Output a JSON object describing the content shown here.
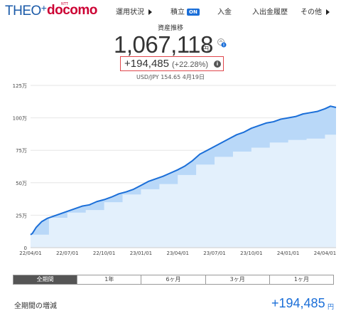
{
  "nav": {
    "brand": "THEO",
    "brand_plus": "+",
    "partner": "docomo",
    "partner_superscript": "NTT",
    "items": [
      {
        "label": "運用状況"
      },
      {
        "label": "積立",
        "badge": "ON"
      },
      {
        "label": "入金"
      },
      {
        "label": "入出金履歴"
      },
      {
        "label": "その他"
      }
    ]
  },
  "header": {
    "title": "資産推移",
    "total_value": "1,067,118",
    "total_unit": "円",
    "gain": "+194,485",
    "gain_pct": "(+22.28%)",
    "fx": "USD/JPY 154.65 4月19日"
  },
  "chart_data": {
    "type": "area",
    "yunit": "万円",
    "ylim": [
      0,
      125
    ],
    "yticks": [
      "0",
      "25万",
      "50万",
      "75万",
      "100万",
      "125万"
    ],
    "ytick_values": [
      0,
      25,
      50,
      75,
      100,
      125
    ],
    "xticks": [
      "22/04/01",
      "22/07/01",
      "22/10/01",
      "23/01/01",
      "23/04/01",
      "23/07/01",
      "23/10/01",
      "24/01/01",
      "24/04/01"
    ],
    "grid": true,
    "colors": {
      "value_line": "#1a6ed8",
      "value_fill": "#b9d8f8",
      "principal_fill": "#e3f0fc"
    },
    "series": [
      {
        "values": [
          [
            0,
            10
          ],
          [
            0.05,
            11
          ],
          [
            0.15,
            15.5
          ],
          [
            0.3,
            20
          ],
          [
            0.45,
            22.5
          ],
          [
            0.6,
            24
          ],
          [
            0.8,
            26
          ],
          [
            1.0,
            28
          ],
          [
            1.2,
            30
          ],
          [
            1.4,
            32
          ],
          [
            1.6,
            33
          ],
          [
            1.8,
            35.5
          ],
          [
            2.0,
            37
          ],
          [
            2.2,
            39
          ],
          [
            2.4,
            41.5
          ],
          [
            2.6,
            43
          ],
          [
            2.8,
            45
          ],
          [
            3.0,
            48
          ],
          [
            3.2,
            51
          ],
          [
            3.4,
            53
          ],
          [
            3.6,
            55
          ],
          [
            3.8,
            57.5
          ],
          [
            4.0,
            60
          ],
          [
            4.2,
            63
          ],
          [
            4.4,
            67
          ],
          [
            4.6,
            72
          ],
          [
            4.8,
            75
          ],
          [
            5.0,
            78
          ],
          [
            5.2,
            81
          ],
          [
            5.4,
            84
          ],
          [
            5.6,
            87
          ],
          [
            5.8,
            89
          ],
          [
            6.0,
            92
          ],
          [
            6.2,
            94
          ],
          [
            6.4,
            96
          ],
          [
            6.6,
            97
          ],
          [
            6.8,
            99
          ],
          [
            7.0,
            100
          ],
          [
            7.2,
            101
          ],
          [
            7.4,
            103
          ],
          [
            7.6,
            104
          ],
          [
            7.8,
            105
          ],
          [
            8.0,
            107
          ],
          [
            8.15,
            109
          ],
          [
            8.3,
            108
          ]
        ]
      },
      {
        "values": [
          [
            0,
            10
          ],
          [
            0.5,
            23
          ],
          [
            1.0,
            27
          ],
          [
            1.5,
            29
          ],
          [
            2.0,
            35
          ],
          [
            2.5,
            41
          ],
          [
            3.0,
            45
          ],
          [
            3.5,
            49
          ],
          [
            4.0,
            56
          ],
          [
            4.5,
            64
          ],
          [
            5.0,
            70
          ],
          [
            5.5,
            74
          ],
          [
            6.0,
            77
          ],
          [
            6.5,
            81
          ],
          [
            7.0,
            83
          ],
          [
            7.5,
            84
          ],
          [
            8.0,
            87
          ],
          [
            8.3,
            87
          ]
        ]
      }
    ]
  },
  "tabs": [
    "全期間",
    "1年",
    "6ヶ月",
    "3ヶ月",
    "1ヶ月"
  ],
  "active_tab": "全期間",
  "summary": {
    "label": "全期間の増減",
    "value": "+194,485",
    "unit": "円"
  }
}
